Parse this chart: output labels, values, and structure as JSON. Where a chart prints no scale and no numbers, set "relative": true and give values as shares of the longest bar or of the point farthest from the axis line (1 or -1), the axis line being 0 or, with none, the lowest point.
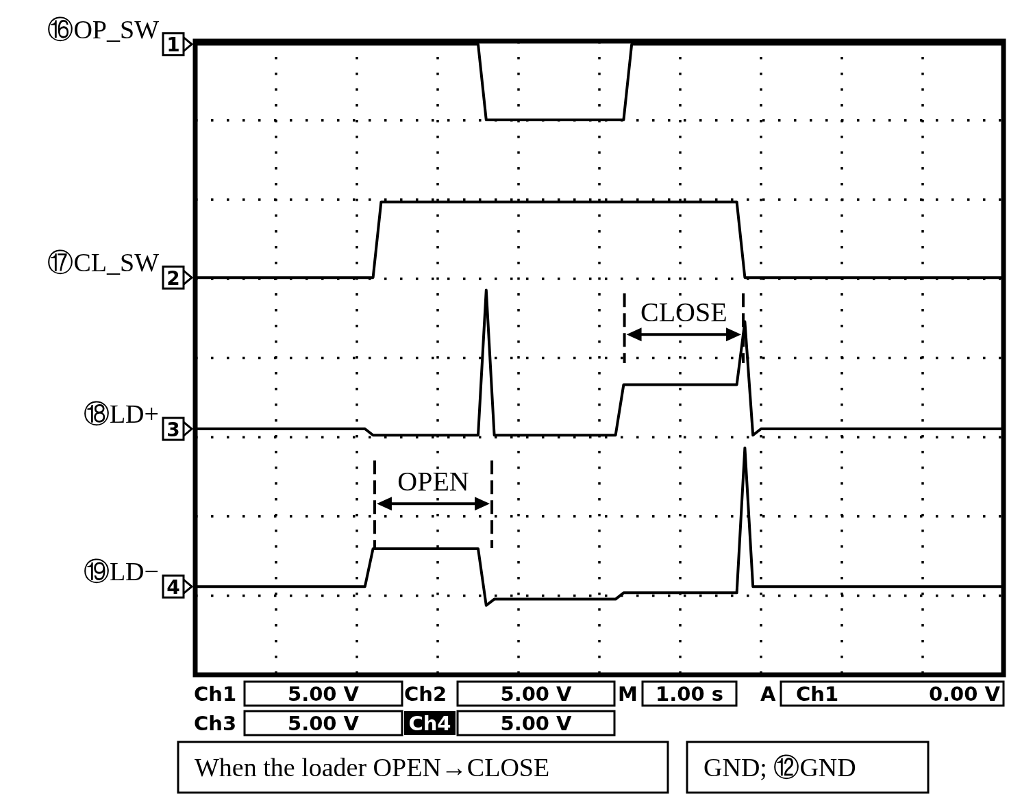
{
  "chart_data": {
    "type": "line",
    "relative": true,
    "grid": true,
    "legend": "left",
    "marker": "none",
    "categories": [
      null,
      null,
      null,
      null,
      null,
      null,
      null,
      null,
      null,
      null,
      null,
      null,
      null,
      null,
      null,
      null,
      null,
      null,
      null,
      null,
      null,
      null,
      null,
      null,
      null,
      null,
      null,
      null,
      null,
      null,
      null,
      null,
      null,
      null,
      null,
      null,
      null,
      null,
      null,
      null,
      null,
      null,
      null,
      null,
      null,
      null,
      null,
      null,
      null,
      null,
      null,
      null,
      null,
      null,
      null,
      null,
      null,
      null,
      null,
      null,
      null,
      null,
      null,
      null,
      null,
      null,
      null,
      null,
      null,
      null,
      null,
      null,
      null,
      null,
      null,
      null,
      null,
      null,
      null,
      null,
      null,
      null,
      null,
      null,
      null,
      null,
      null,
      null,
      null,
      null,
      null,
      null,
      null,
      null,
      null,
      null,
      null,
      null,
      null,
      null,
      null
    ],
    "series": [
      {
        "name": "⑯OP_SW",
        "color": "#000000",
        "values": [
          1,
          1,
          1,
          1,
          1,
          1,
          1,
          1,
          1,
          1,
          1,
          1,
          1,
          1,
          1,
          1,
          1,
          1,
          1,
          1,
          1,
          1,
          1,
          1,
          1,
          1,
          1,
          1,
          1,
          1,
          1,
          1,
          1,
          1,
          1,
          1,
          0.88,
          0.88,
          0.88,
          0.88,
          0.88,
          0.88,
          0.88,
          0.88,
          0.88,
          0.88,
          0.88,
          0.88,
          0.88,
          0.88,
          0.88,
          0.88,
          0.88,
          0.88,
          1,
          1,
          1,
          1,
          1,
          1,
          1,
          1,
          1,
          1,
          1,
          1,
          1,
          1,
          1,
          1,
          1,
          1,
          1,
          1,
          1,
          1,
          1,
          1,
          1,
          1,
          1,
          1,
          1,
          1,
          1,
          1,
          1,
          1,
          1,
          1,
          1,
          1,
          1,
          1,
          1,
          1,
          1,
          1,
          1,
          1,
          1
        ]
      },
      {
        "name": "⑰CL_SW",
        "color": "#000000",
        "values": [
          0.63,
          0.63,
          0.63,
          0.63,
          0.63,
          0.63,
          0.63,
          0.63,
          0.63,
          0.63,
          0.63,
          0.63,
          0.63,
          0.63,
          0.63,
          0.63,
          0.63,
          0.63,
          0.63,
          0.63,
          0.63,
          0.63,
          0.63,
          0.75,
          0.75,
          0.75,
          0.75,
          0.75,
          0.75,
          0.75,
          0.75,
          0.75,
          0.75,
          0.75,
          0.75,
          0.75,
          0.75,
          0.75,
          0.75,
          0.75,
          0.75,
          0.75,
          0.75,
          0.75,
          0.75,
          0.75,
          0.75,
          0.75,
          0.75,
          0.75,
          0.75,
          0.75,
          0.75,
          0.75,
          0.75,
          0.75,
          0.75,
          0.75,
          0.75,
          0.75,
          0.75,
          0.75,
          0.75,
          0.75,
          0.75,
          0.75,
          0.75,
          0.75,
          0.63,
          0.63,
          0.63,
          0.63,
          0.63,
          0.63,
          0.63,
          0.63,
          0.63,
          0.63,
          0.63,
          0.63,
          0.63,
          0.63,
          0.63,
          0.63,
          0.63,
          0.63,
          0.63,
          0.63,
          0.63,
          0.63,
          0.63,
          0.63,
          0.63,
          0.63,
          0.63,
          0.63,
          0.63,
          0.63,
          0.63,
          0.63,
          0.63
        ]
      },
      {
        "name": "⑱LD+",
        "color": "#000000",
        "values": [
          0.39,
          0.39,
          0.39,
          0.39,
          0.39,
          0.39,
          0.39,
          0.39,
          0.39,
          0.39,
          0.39,
          0.39,
          0.39,
          0.39,
          0.39,
          0.39,
          0.39,
          0.39,
          0.39,
          0.39,
          0.39,
          0.39,
          0.38,
          0.38,
          0.38,
          0.38,
          0.38,
          0.38,
          0.38,
          0.38,
          0.38,
          0.38,
          0.38,
          0.38,
          0.38,
          0.38,
          0.61,
          0.38,
          0.38,
          0.38,
          0.38,
          0.38,
          0.38,
          0.38,
          0.38,
          0.38,
          0.38,
          0.38,
          0.38,
          0.38,
          0.38,
          0.38,
          0.38,
          0.46,
          0.46,
          0.46,
          0.46,
          0.46,
          0.46,
          0.46,
          0.46,
          0.46,
          0.46,
          0.46,
          0.46,
          0.46,
          0.46,
          0.46,
          0.56,
          0.38,
          0.39,
          0.39,
          0.39,
          0.39,
          0.39,
          0.39,
          0.39,
          0.39,
          0.39,
          0.39,
          0.39,
          0.39,
          0.39,
          0.39,
          0.39,
          0.39,
          0.39,
          0.39,
          0.39,
          0.39,
          0.39,
          0.39,
          0.39,
          0.39,
          0.39,
          0.39,
          0.39,
          0.39,
          0.39,
          0.39,
          0.39
        ]
      },
      {
        "name": "⑲LD−",
        "color": "#000000",
        "values": [
          0.14,
          0.14,
          0.14,
          0.14,
          0.14,
          0.14,
          0.14,
          0.14,
          0.14,
          0.14,
          0.14,
          0.14,
          0.14,
          0.14,
          0.14,
          0.14,
          0.14,
          0.14,
          0.14,
          0.14,
          0.14,
          0.14,
          0.2,
          0.2,
          0.2,
          0.2,
          0.2,
          0.2,
          0.2,
          0.2,
          0.2,
          0.2,
          0.2,
          0.2,
          0.2,
          0.2,
          0.11,
          0.12,
          0.12,
          0.12,
          0.12,
          0.12,
          0.12,
          0.12,
          0.12,
          0.12,
          0.12,
          0.12,
          0.12,
          0.12,
          0.12,
          0.12,
          0.12,
          0.13,
          0.13,
          0.13,
          0.13,
          0.13,
          0.13,
          0.13,
          0.13,
          0.13,
          0.13,
          0.13,
          0.13,
          0.13,
          0.13,
          0.13,
          0.36,
          0.14,
          0.14,
          0.14,
          0.14,
          0.14,
          0.14,
          0.14,
          0.14,
          0.14,
          0.14,
          0.14,
          0.14,
          0.14,
          0.14,
          0.14,
          0.14,
          0.14,
          0.14,
          0.14,
          0.14,
          0.14,
          0.14,
          0.14,
          0.14,
          0.14,
          0.14,
          0.14,
          0.14,
          0.14,
          0.14,
          0.14,
          0.14
        ]
      }
    ],
    "annotations": [
      "OPEN",
      "CLOSE",
      "1",
      "2",
      "3",
      "4",
      "Ch1",
      "5.00 V",
      "Ch2",
      "5.00 V",
      "M",
      "1.00 s",
      "A",
      "Ch1",
      "0.00 V",
      "Ch3",
      "5.00 V",
      "Ch4",
      "5.00 V",
      "When the loader OPEN→CLOSE",
      "GND; ⑫GND"
    ]
  }
}
